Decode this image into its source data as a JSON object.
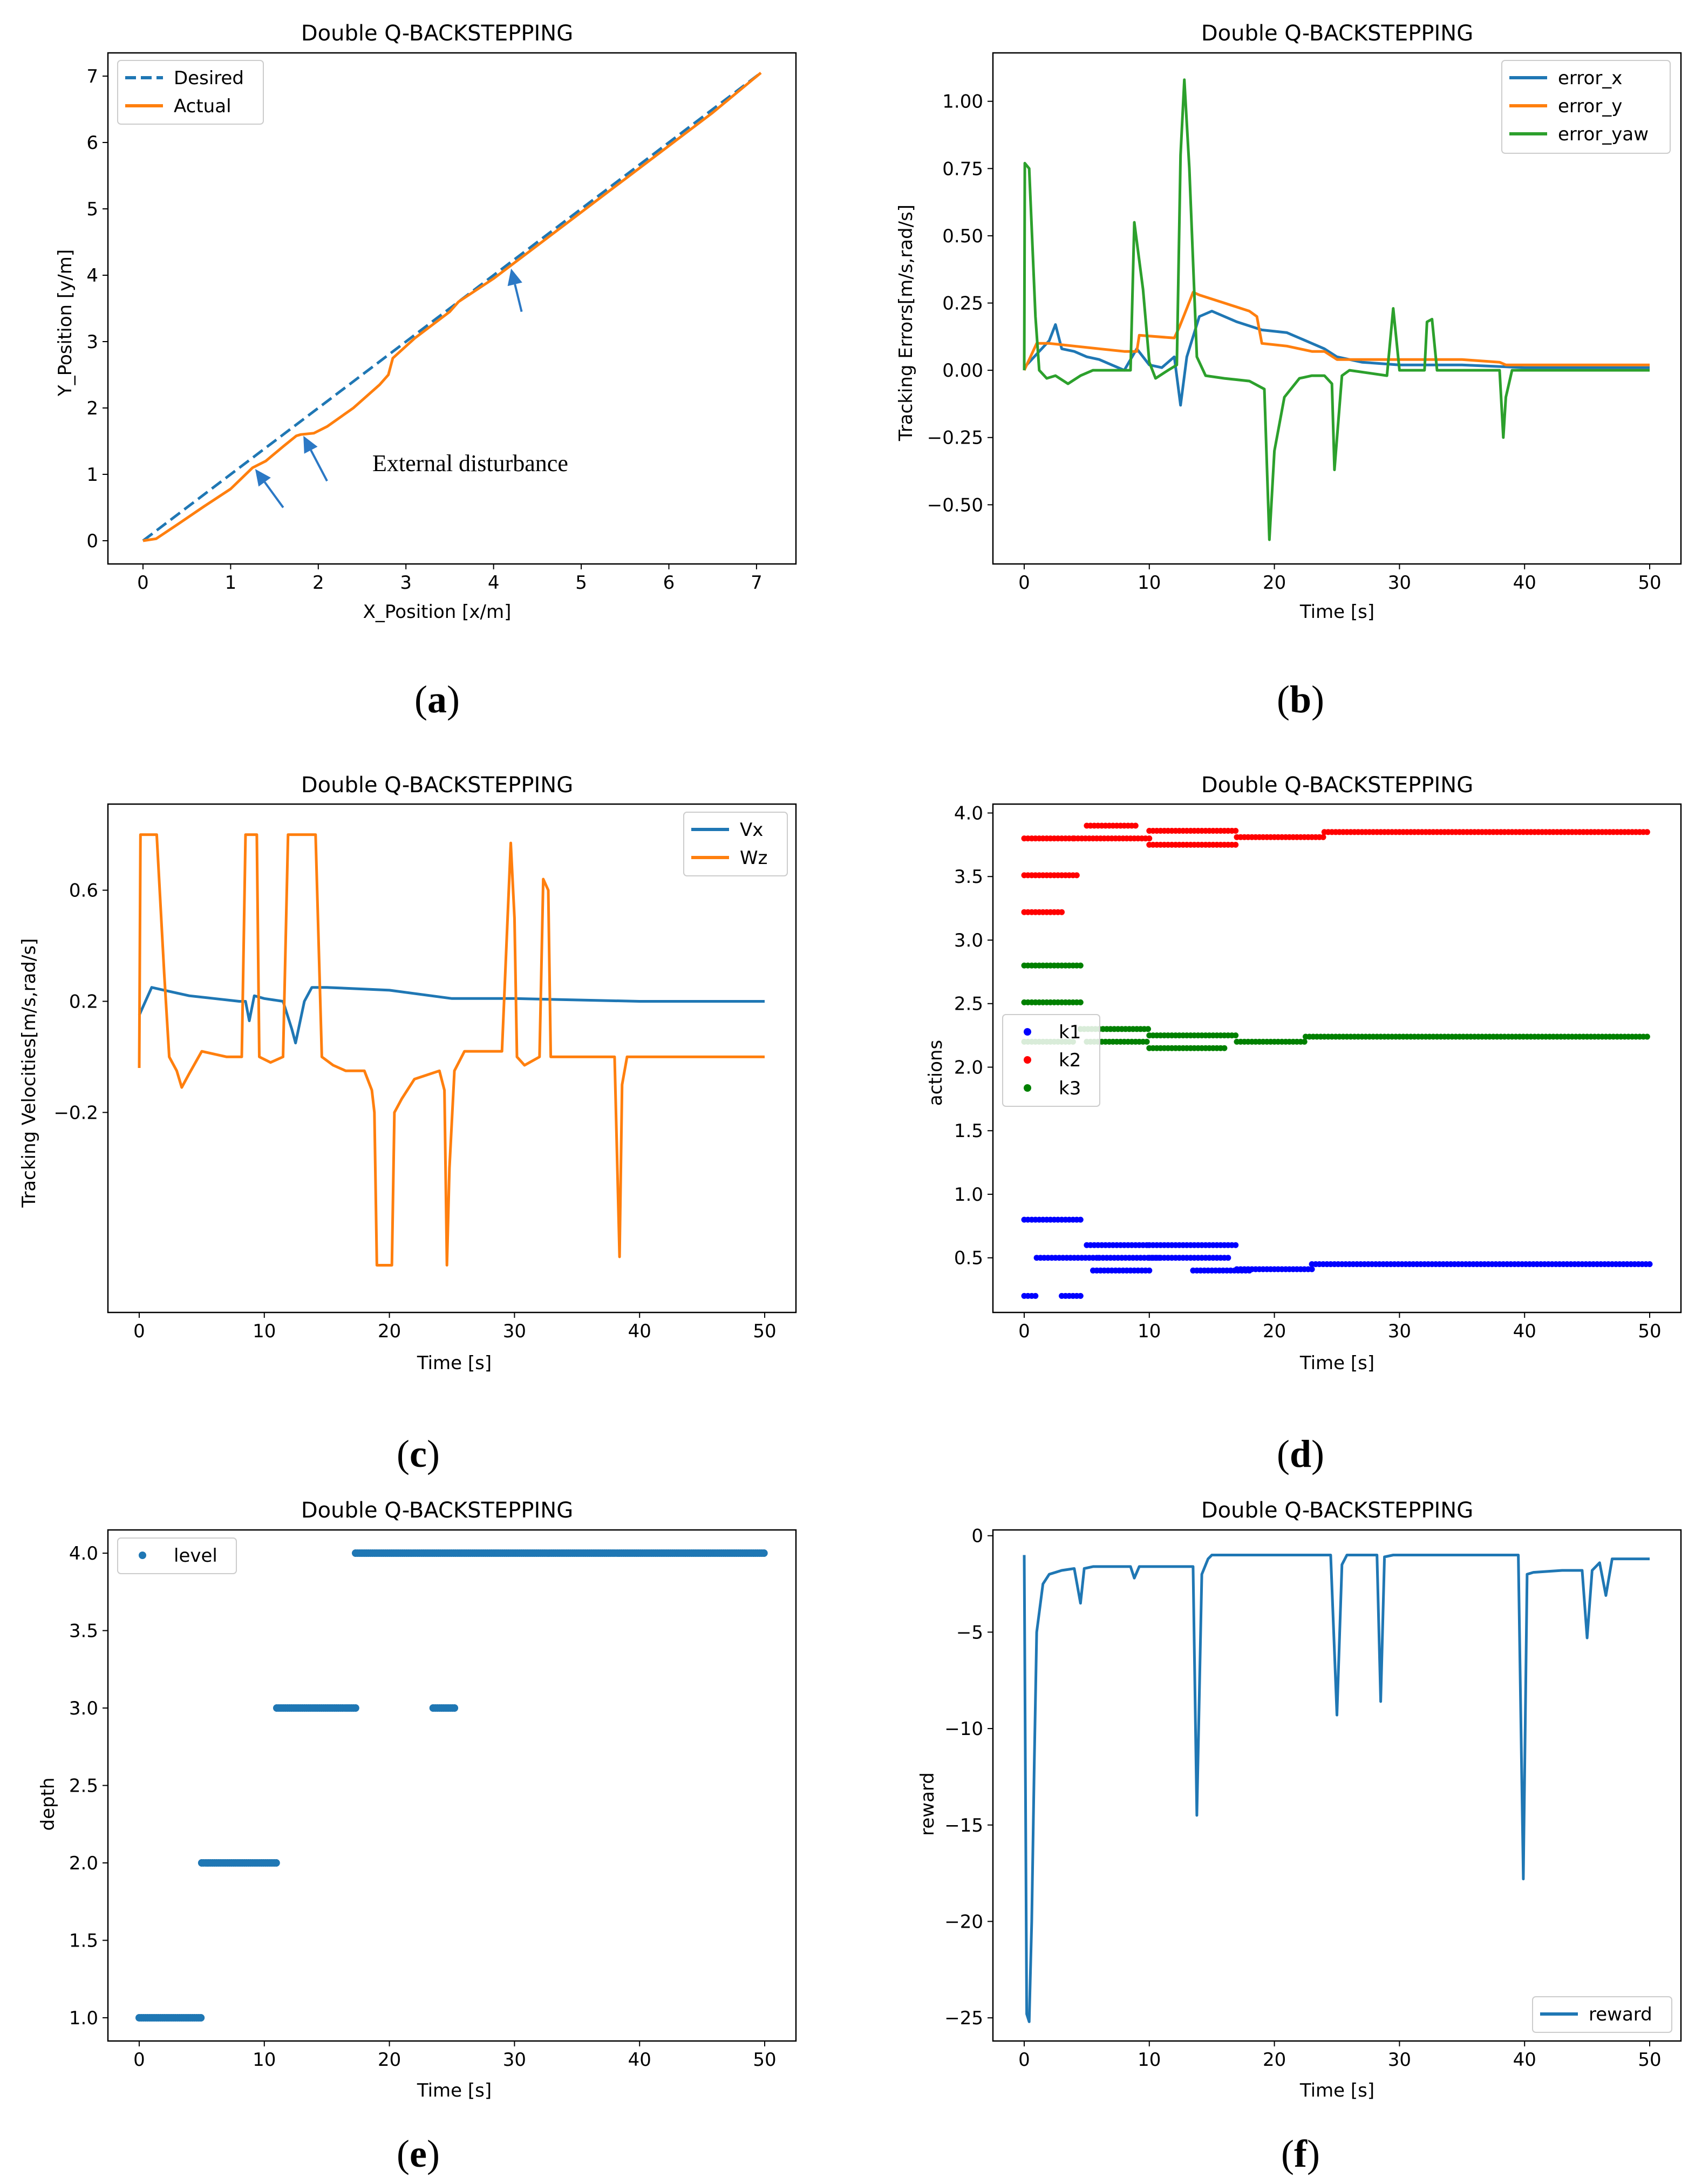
{
  "colors": {
    "blue": "#1f77b4",
    "orange": "#ff7f0e",
    "green": "#2ca02c",
    "k1": "#0000ff",
    "k2": "#ff0000",
    "k3": "#008000",
    "arrow": "#2b78c5"
  },
  "chart_data": [
    {
      "id": "a",
      "label": "a",
      "type": "line",
      "title": "Double Q-BACKSTEPPING",
      "xlabel": "X_Position [x/m]",
      "ylabel": "Y_Position [y/m]",
      "xlim": [
        -0.4,
        7.45
      ],
      "ylim": [
        -0.35,
        7.35
      ],
      "xticks": [
        0,
        1,
        2,
        3,
        4,
        5,
        6,
        7
      ],
      "yticks": [
        0,
        1,
        2,
        3,
        4,
        5,
        6,
        7
      ],
      "legend": "top-left",
      "annotation": "External disturbance",
      "arrows": [
        {
          "from": [
            1.6,
            0.5
          ],
          "to": [
            1.28,
            1.08
          ]
        },
        {
          "from": [
            2.1,
            0.9
          ],
          "to": [
            1.83,
            1.58
          ]
        },
        {
          "from": [
            4.32,
            3.45
          ],
          "to": [
            4.2,
            4.1
          ]
        }
      ],
      "series": [
        {
          "name": "Desired",
          "color": "blue",
          "dashed": true,
          "x": [
            0,
            7.05
          ],
          "y": [
            0,
            7.05
          ]
        },
        {
          "name": "Actual",
          "color": "orange",
          "x": [
            0,
            0.15,
            0.4,
            0.7,
            1.0,
            1.25,
            1.4,
            1.6,
            1.75,
            1.8,
            1.95,
            2.1,
            2.4,
            2.7,
            2.8,
            2.85,
            3.1,
            3.4,
            3.5,
            3.6,
            4.0,
            4.2,
            4.5,
            5.0,
            5.5,
            6.0,
            6.5,
            7.05
          ],
          "y": [
            0,
            0.03,
            0.25,
            0.52,
            0.78,
            1.1,
            1.2,
            1.42,
            1.58,
            1.6,
            1.62,
            1.72,
            2.0,
            2.35,
            2.5,
            2.75,
            3.05,
            3.35,
            3.45,
            3.6,
            3.95,
            4.15,
            4.45,
            4.95,
            5.45,
            5.95,
            6.45,
            7.05
          ]
        }
      ]
    },
    {
      "id": "b",
      "label": "b",
      "type": "line",
      "title": "Double Q-BACKSTEPPING",
      "xlabel": "Time [s]",
      "ylabel": "Tracking Errors[m/s,rad/s]",
      "xlim": [
        -2.5,
        52.5
      ],
      "ylim": [
        -0.72,
        1.18
      ],
      "xticks": [
        0,
        10,
        20,
        30,
        40,
        50
      ],
      "yticks": [
        -0.5,
        -0.25,
        0.0,
        0.25,
        0.5,
        0.75,
        1.0
      ],
      "ytick_labels": [
        "−0.50",
        "−0.25",
        "0.00",
        "0.25",
        "0.50",
        "0.75",
        "1.00"
      ],
      "legend": "top-right",
      "series": [
        {
          "name": "error_x",
          "color": "blue",
          "x": [
            0,
            1,
            2,
            2.5,
            3,
            4,
            5,
            6,
            7,
            8,
            9,
            10,
            11,
            12,
            12.5,
            13,
            14,
            15,
            17,
            19,
            21,
            23,
            24,
            25,
            27,
            30,
            35,
            40,
            45,
            50
          ],
          "y": [
            0.01,
            0.06,
            0.11,
            0.17,
            0.08,
            0.07,
            0.05,
            0.04,
            0.02,
            0.0,
            0.08,
            0.02,
            0.01,
            0.05,
            -0.13,
            0.05,
            0.2,
            0.22,
            0.18,
            0.15,
            0.14,
            0.1,
            0.08,
            0.05,
            0.03,
            0.02,
            0.02,
            0.01,
            0.01,
            0.01
          ]
        },
        {
          "name": "error_y",
          "color": "orange",
          "x": [
            0,
            1,
            2,
            4,
            6,
            8,
            9,
            9.2,
            12,
            12.4,
            13,
            13.5,
            14,
            16,
            18,
            18.6,
            19,
            21,
            23,
            24,
            25,
            27,
            30,
            35,
            38,
            38.5,
            45,
            50
          ],
          "y": [
            0.0,
            0.1,
            0.1,
            0.09,
            0.08,
            0.07,
            0.07,
            0.13,
            0.12,
            0.16,
            0.23,
            0.29,
            0.28,
            0.25,
            0.22,
            0.2,
            0.1,
            0.09,
            0.07,
            0.07,
            0.04,
            0.04,
            0.04,
            0.04,
            0.03,
            0.02,
            0.02,
            0.02
          ]
        },
        {
          "name": "error_yaw",
          "color": "green",
          "x": [
            0,
            0.05,
            0.4,
            0.9,
            1.2,
            1.8,
            2.5,
            3.5,
            4.5,
            5.5,
            7,
            8.5,
            8.8,
            9.5,
            10,
            10.5,
            11.5,
            12.2,
            12.5,
            12.8,
            13.2,
            13.8,
            14.5,
            16,
            18,
            19.2,
            19.6,
            20,
            20.8,
            22,
            23,
            24,
            24.6,
            24.8,
            25.4,
            26,
            29,
            29.5,
            30,
            30.5,
            32,
            32.2,
            32.6,
            33,
            38,
            38.3,
            38.5,
            39,
            45,
            50
          ],
          "y": [
            0.0,
            0.77,
            0.75,
            0.2,
            0.0,
            -0.03,
            -0.02,
            -0.05,
            -0.02,
            0.0,
            0.0,
            0.0,
            0.55,
            0.3,
            0.03,
            -0.03,
            0.0,
            0.02,
            0.8,
            1.08,
            0.75,
            0.05,
            -0.02,
            -0.03,
            -0.04,
            -0.07,
            -0.63,
            -0.3,
            -0.1,
            -0.03,
            -0.02,
            -0.02,
            -0.05,
            -0.37,
            -0.02,
            0.0,
            -0.02,
            0.23,
            0.0,
            0.0,
            0.0,
            0.18,
            0.19,
            0.0,
            0.0,
            -0.25,
            -0.1,
            0.0,
            0.0,
            0.0
          ]
        }
      ]
    },
    {
      "id": "c",
      "label": "c",
      "type": "line",
      "title": "Double Q-BACKSTEPPING",
      "xlabel": "Time [s]",
      "ylabel": "Tracking Velocities[m/s,rad/s]",
      "xlim": [
        -2.5,
        52.5
      ],
      "ylim": [
        -0.92,
        0.91
      ],
      "xticks": [
        0,
        10,
        20,
        30,
        40,
        50
      ],
      "yticks": [
        -0.2,
        0.2,
        0.6
      ],
      "ytick_labels": [
        "−0.2",
        "0.2",
        "0.6"
      ],
      "legend": "top-right",
      "series": [
        {
          "name": "Vx",
          "color": "blue",
          "x": [
            0,
            0.5,
            1,
            2,
            4,
            6,
            8,
            8.5,
            8.8,
            9.2,
            10,
            11.5,
            12.2,
            12.5,
            13.2,
            13.8,
            15,
            20,
            25,
            30,
            40,
            50
          ],
          "y": [
            0.15,
            0.2,
            0.25,
            0.24,
            0.22,
            0.21,
            0.2,
            0.2,
            0.13,
            0.22,
            0.21,
            0.2,
            0.1,
            0.05,
            0.2,
            0.25,
            0.25,
            0.24,
            0.21,
            0.21,
            0.2,
            0.2
          ]
        },
        {
          "name": "Wz",
          "color": "orange",
          "x": [
            0,
            0.1,
            0.2,
            1.4,
            2,
            2.4,
            3,
            3.4,
            4,
            5,
            7,
            8.2,
            8.5,
            9.4,
            9.6,
            10.5,
            11.5,
            11.9,
            12.2,
            14.1,
            14.6,
            15.5,
            16.5,
            18,
            18.6,
            18.8,
            19,
            20.2,
            20.4,
            21,
            22,
            24,
            24.4,
            24.6,
            24.8,
            25.2,
            26,
            29,
            29.7,
            30,
            30.2,
            30.8,
            32,
            32.3,
            32.7,
            32.9,
            34,
            38,
            38.4,
            38.6,
            39,
            39.6,
            42,
            50
          ],
          "y": [
            -0.04,
            0.8,
            0.8,
            0.8,
            0.3,
            0.0,
            -0.05,
            -0.11,
            -0.06,
            0.02,
            0.0,
            0.0,
            0.8,
            0.8,
            0.0,
            -0.02,
            0.0,
            0.8,
            0.8,
            0.8,
            0.0,
            -0.03,
            -0.05,
            -0.05,
            -0.12,
            -0.2,
            -0.75,
            -0.75,
            -0.2,
            -0.15,
            -0.08,
            -0.05,
            -0.12,
            -0.75,
            -0.4,
            -0.05,
            0.02,
            0.02,
            0.77,
            0.5,
            0.0,
            -0.03,
            0.0,
            0.64,
            0.6,
            0.0,
            0.0,
            0.0,
            -0.72,
            -0.1,
            0.0,
            0.0,
            0.0,
            0.0
          ]
        }
      ]
    },
    {
      "id": "d",
      "label": "d",
      "type": "scatter",
      "title": "Double Q-BACKSTEPPING",
      "xlabel": "Time [s]",
      "ylabel": "actions",
      "xlim": [
        -2.5,
        52.5
      ],
      "ylim": [
        0.07,
        4.07
      ],
      "xticks": [
        0,
        10,
        20,
        30,
        40,
        50
      ],
      "yticks": [
        0.5,
        1.0,
        1.5,
        2.0,
        2.5,
        3.0,
        3.5,
        4.0
      ],
      "legend": "center-left",
      "series": [
        {
          "name": "k1",
          "color": "k1",
          "segments": [
            {
              "from": 0,
              "to": 1.0,
              "y": 0.2
            },
            {
              "from": 3.0,
              "to": 4.5,
              "y": 0.2
            },
            {
              "from": 0,
              "to": 4.5,
              "y": 0.8
            },
            {
              "from": 1.0,
              "to": 6.0,
              "y": 0.5
            },
            {
              "from": 5.0,
              "to": 10.0,
              "y": 0.6
            },
            {
              "from": 5.5,
              "to": 10.0,
              "y": 0.4
            },
            {
              "from": 6.0,
              "to": 11.0,
              "y": 0.5
            },
            {
              "from": 10.0,
              "to": 17.0,
              "y": 0.6
            },
            {
              "from": 10.0,
              "to": 16.5,
              "y": 0.5
            },
            {
              "from": 13.5,
              "to": 18.0,
              "y": 0.4
            },
            {
              "from": 17.0,
              "to": 23.0,
              "y": 0.41
            },
            {
              "from": 23.0,
              "to": 50.0,
              "y": 0.45
            }
          ]
        },
        {
          "name": "k2",
          "color": "k2",
          "segments": [
            {
              "from": 0,
              "to": 4.0,
              "y": 3.8
            },
            {
              "from": 0,
              "to": 3.0,
              "y": 3.22
            },
            {
              "from": 0,
              "to": 4.2,
              "y": 3.51
            },
            {
              "from": 4.0,
              "to": 10.0,
              "y": 3.8
            },
            {
              "from": 5.0,
              "to": 9.0,
              "y": 3.9
            },
            {
              "from": 10.0,
              "to": 17.0,
              "y": 3.75
            },
            {
              "from": 10.0,
              "to": 17.0,
              "y": 3.86
            },
            {
              "from": 17.0,
              "to": 24.0,
              "y": 3.81
            },
            {
              "from": 24.0,
              "to": 50.0,
              "y": 3.85
            }
          ]
        },
        {
          "name": "k3",
          "color": "k3",
          "segments": [
            {
              "from": 0,
              "to": 4.5,
              "y": 2.8
            },
            {
              "from": 0,
              "to": 4.5,
              "y": 2.51
            },
            {
              "from": 0,
              "to": 4.0,
              "y": 2.2
            },
            {
              "from": 4.5,
              "to": 10.0,
              "y": 2.3
            },
            {
              "from": 5.0,
              "to": 10.0,
              "y": 2.2
            },
            {
              "from": 10.0,
              "to": 17.0,
              "y": 2.25
            },
            {
              "from": 10.0,
              "to": 16.0,
              "y": 2.15
            },
            {
              "from": 17.0,
              "to": 22.5,
              "y": 2.2
            },
            {
              "from": 22.5,
              "to": 50.0,
              "y": 2.24
            }
          ]
        }
      ]
    },
    {
      "id": "e",
      "label": "e",
      "type": "scatter",
      "title": "Double Q-BACKSTEPPING",
      "xlabel": "Time [s]",
      "ylabel": "depth",
      "xlim": [
        -2.5,
        52.5
      ],
      "ylim": [
        0.85,
        4.15
      ],
      "xticks": [
        0,
        10,
        20,
        30,
        40,
        50
      ],
      "yticks": [
        1.0,
        1.5,
        2.0,
        2.5,
        3.0,
        3.5,
        4.0
      ],
      "legend": "top-left",
      "series": [
        {
          "name": "level",
          "color": "blue",
          "segments": [
            {
              "from": 0,
              "to": 5.0,
              "y": 1.0
            },
            {
              "from": 5.0,
              "to": 11.0,
              "y": 2.0
            },
            {
              "from": 11.0,
              "to": 17.3,
              "y": 3.0
            },
            {
              "from": 23.5,
              "to": 25.3,
              "y": 3.0
            },
            {
              "from": 17.3,
              "to": 50.0,
              "y": 4.0
            }
          ]
        }
      ]
    },
    {
      "id": "f",
      "label": "f",
      "type": "line",
      "title": "Double Q-BACKSTEPPING",
      "xlabel": "Time [s]",
      "ylabel": "reward",
      "xlim": [
        -2.5,
        52.5
      ],
      "ylim": [
        -26.2,
        0.3
      ],
      "xticks": [
        0,
        10,
        20,
        30,
        40,
        50
      ],
      "yticks": [
        0,
        -5,
        -10,
        -15,
        -20,
        -25
      ],
      "ytick_labels": [
        "0",
        "−5",
        "−10",
        "−15",
        "−20",
        "−25"
      ],
      "legend": "bottom-right",
      "series": [
        {
          "name": "reward",
          "color": "blue",
          "x": [
            0,
            0.2,
            0.4,
            0.6,
            0.8,
            1.0,
            1.5,
            2.0,
            3.0,
            4.0,
            4.5,
            4.8,
            5.5,
            8.5,
            8.8,
            9.2,
            13.5,
            13.8,
            14.2,
            14.7,
            15,
            24.5,
            25.0,
            25.4,
            25.8,
            28.2,
            28.5,
            28.8,
            29.5,
            39.5,
            39.9,
            40.2,
            40.7,
            43,
            44.6,
            45.0,
            45.4,
            46,
            46.5,
            47,
            50
          ],
          "y": [
            -1.0,
            -24.8,
            -25.2,
            -20.0,
            -12.0,
            -5.0,
            -2.5,
            -2.0,
            -1.8,
            -1.7,
            -3.5,
            -1.7,
            -1.6,
            -1.6,
            -2.2,
            -1.6,
            -1.6,
            -14.5,
            -2.0,
            -1.2,
            -1.0,
            -1.0,
            -9.3,
            -1.5,
            -1.0,
            -1.0,
            -8.6,
            -1.1,
            -1.0,
            -1.0,
            -17.8,
            -2.0,
            -1.9,
            -1.8,
            -1.8,
            -5.3,
            -1.8,
            -1.4,
            -3.1,
            -1.2,
            -1.2
          ]
        }
      ]
    }
  ]
}
